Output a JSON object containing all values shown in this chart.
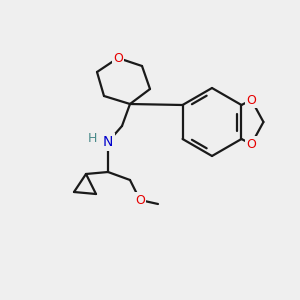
{
  "background_color": "#efefef",
  "bond_color": "#1a1a1a",
  "atom_colors": {
    "O": "#e60000",
    "N": "#0000cc",
    "H_on_N": "#4a8a8a",
    "C": "#1a1a1a"
  },
  "bond_width": 1.6,
  "fig_width": 3.0,
  "fig_height": 3.0,
  "dpi": 100
}
